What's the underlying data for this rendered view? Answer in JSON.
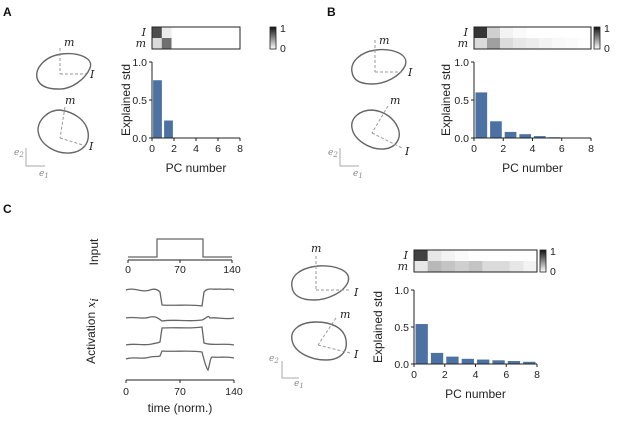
{
  "panels": {
    "A": {
      "label": "A"
    },
    "B": {
      "label": "B"
    },
    "C": {
      "label": "C"
    }
  },
  "vector_labels": {
    "m": "m",
    "I": "I",
    "e1": "e",
    "e1_sub": "1",
    "e2": "e",
    "e2_sub": "2"
  },
  "heatmap": {
    "row_labels": [
      "I",
      "m"
    ],
    "colorbar_ticks": [
      "1",
      "0"
    ],
    "colors": {
      "high": "#111111",
      "low": "#ffffff"
    }
  },
  "input_plot": {
    "ylabel": "Input",
    "xticks": [
      "0",
      "70",
      "140"
    ]
  },
  "activation_plot": {
    "ylabel": "Activation",
    "ylabel_var": "x",
    "ylabel_sub": "i",
    "xlabel": "time (norm.)",
    "xticks": [
      "0",
      "70",
      "140"
    ]
  },
  "colors": {
    "bar": "#4c72a4",
    "trace": "#666666",
    "dash": "#999999"
  },
  "chart_data": [
    {
      "panel": "A",
      "type": "bar",
      "xlabel": "PC number",
      "ylabel": "Explained std",
      "x": [
        0,
        1
      ],
      "values": [
        0.76,
        0.23
      ],
      "xlim": [
        0,
        8
      ],
      "ylim": [
        0,
        1.0
      ],
      "xticks": [
        "0",
        "2",
        "4",
        "6",
        "8"
      ],
      "yticks": [
        "0.0",
        "0.5",
        "1.0"
      ],
      "heatmap": {
        "I": [
          0.75,
          0.08,
          0,
          0,
          0,
          0,
          0,
          0,
          0
        ],
        "m": [
          0.15,
          0.6,
          0,
          0,
          0,
          0,
          0,
          0,
          0
        ]
      }
    },
    {
      "panel": "B",
      "type": "bar",
      "xlabel": "PC number",
      "ylabel": "Explained std",
      "x": [
        0,
        1,
        2,
        3,
        4,
        5,
        6,
        7
      ],
      "values": [
        0.6,
        0.22,
        0.08,
        0.05,
        0.025,
        0.01,
        0.006,
        0.004
      ],
      "xlim": [
        0,
        8
      ],
      "ylim": [
        0,
        1.0
      ],
      "xticks": [
        "0",
        "2",
        "4",
        "6",
        "8"
      ],
      "yticks": [
        "0.0",
        "0.5",
        "1.0"
      ],
      "heatmap": {
        "I": [
          0.85,
          0.2,
          0.05,
          0.02,
          0,
          0,
          0,
          0,
          0
        ],
        "m": [
          0.15,
          0.4,
          0.15,
          0.1,
          0.08,
          0.05,
          0.03,
          0.02,
          0.01
        ]
      }
    },
    {
      "panel": "C",
      "type": "bar",
      "xlabel": "PC number",
      "ylabel": "Explained std",
      "x": [
        0,
        1,
        2,
        3,
        4,
        5,
        6,
        7
      ],
      "values": [
        0.54,
        0.15,
        0.1,
        0.07,
        0.06,
        0.05,
        0.04,
        0.03
      ],
      "xlim": [
        0,
        8
      ],
      "ylim": [
        0,
        1.0
      ],
      "xticks": [
        "0",
        "2",
        "4",
        "6",
        "8"
      ],
      "yticks": [
        "0.0",
        "0.5",
        "1.0"
      ],
      "heatmap": {
        "I": [
          0.8,
          0.1,
          0.05,
          0.02,
          0,
          0,
          0,
          0,
          0
        ],
        "m": [
          0.1,
          0.3,
          0.25,
          0.2,
          0.25,
          0.15,
          0.15,
          0.1,
          0.05
        ]
      }
    }
  ]
}
